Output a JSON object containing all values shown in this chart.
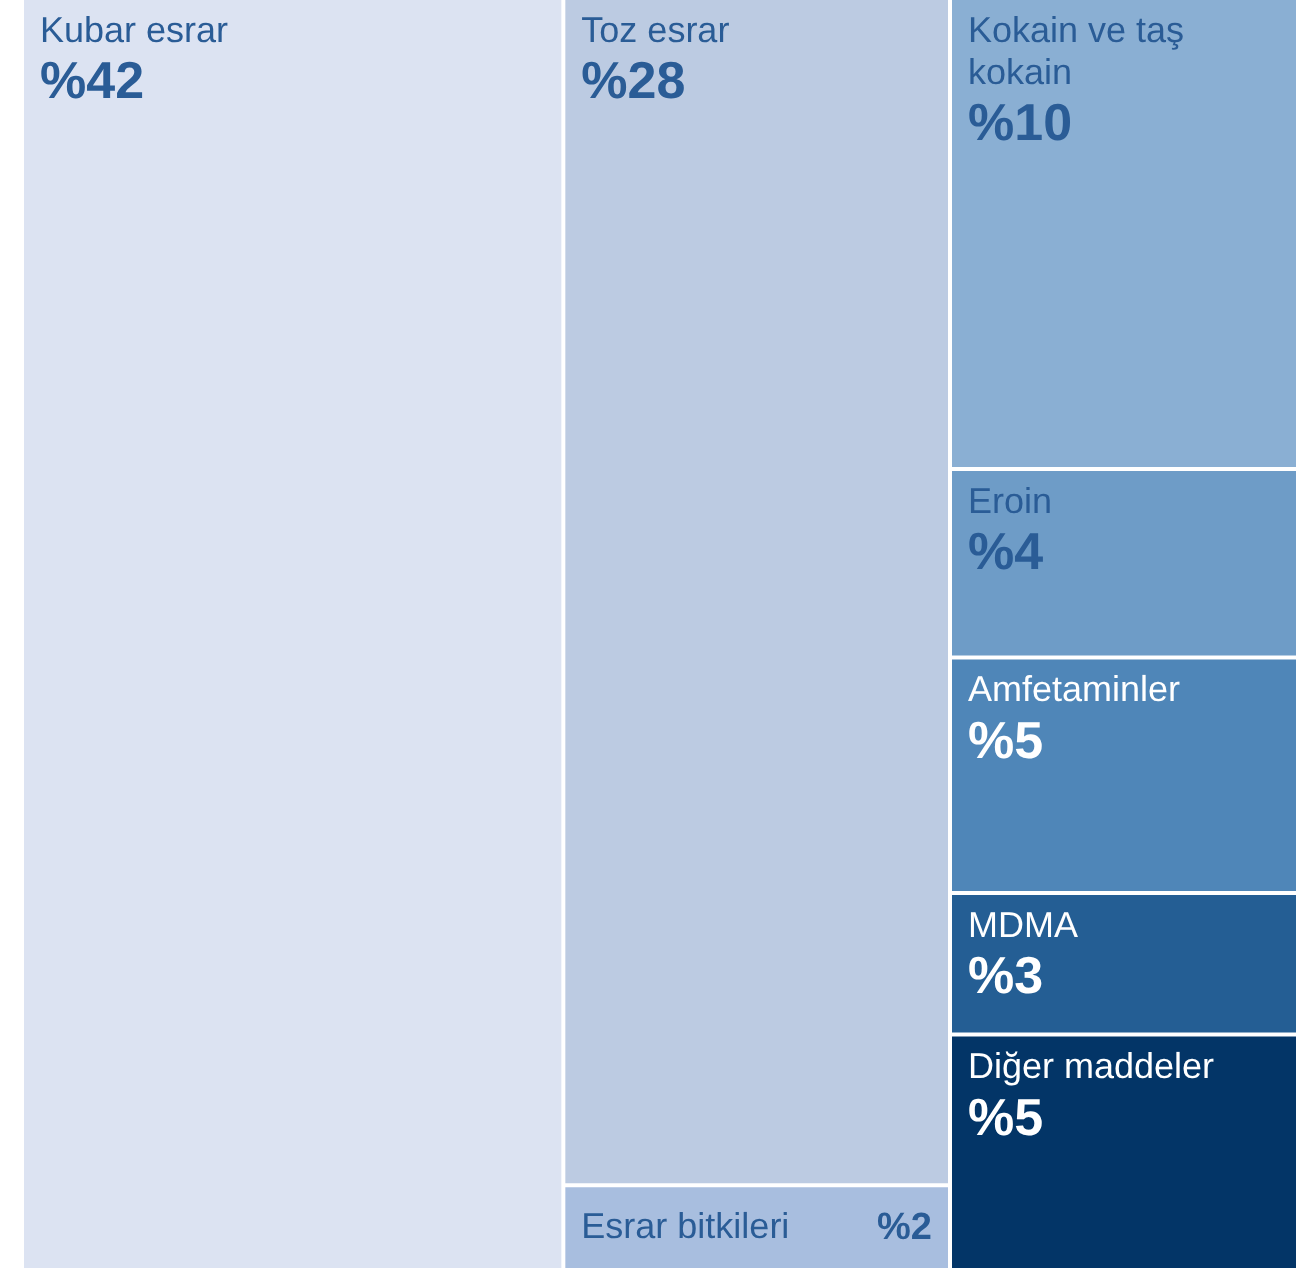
{
  "chart_data": {
    "type": "other",
    "categories": [
      "Kubar esrar",
      "Toz esrar",
      "Esrar bitkileri",
      "Kokain ve taş kokain",
      "Eroin",
      "Amfetaminler",
      "MDMA",
      "Diğer maddeler"
    ],
    "values": [
      42,
      28,
      2,
      10,
      4,
      5,
      3,
      5
    ],
    "value_labels": [
      "%42",
      "%28",
      "%2",
      "%10",
      "%4",
      "%5",
      "%3",
      "%5"
    ],
    "colors": [
      "#dce3f2",
      "#bccbe2",
      "#a8bedf",
      "#8aafd3",
      "#6e9cc7",
      "#4f86b8",
      "#245e94",
      "#033567"
    ]
  }
}
